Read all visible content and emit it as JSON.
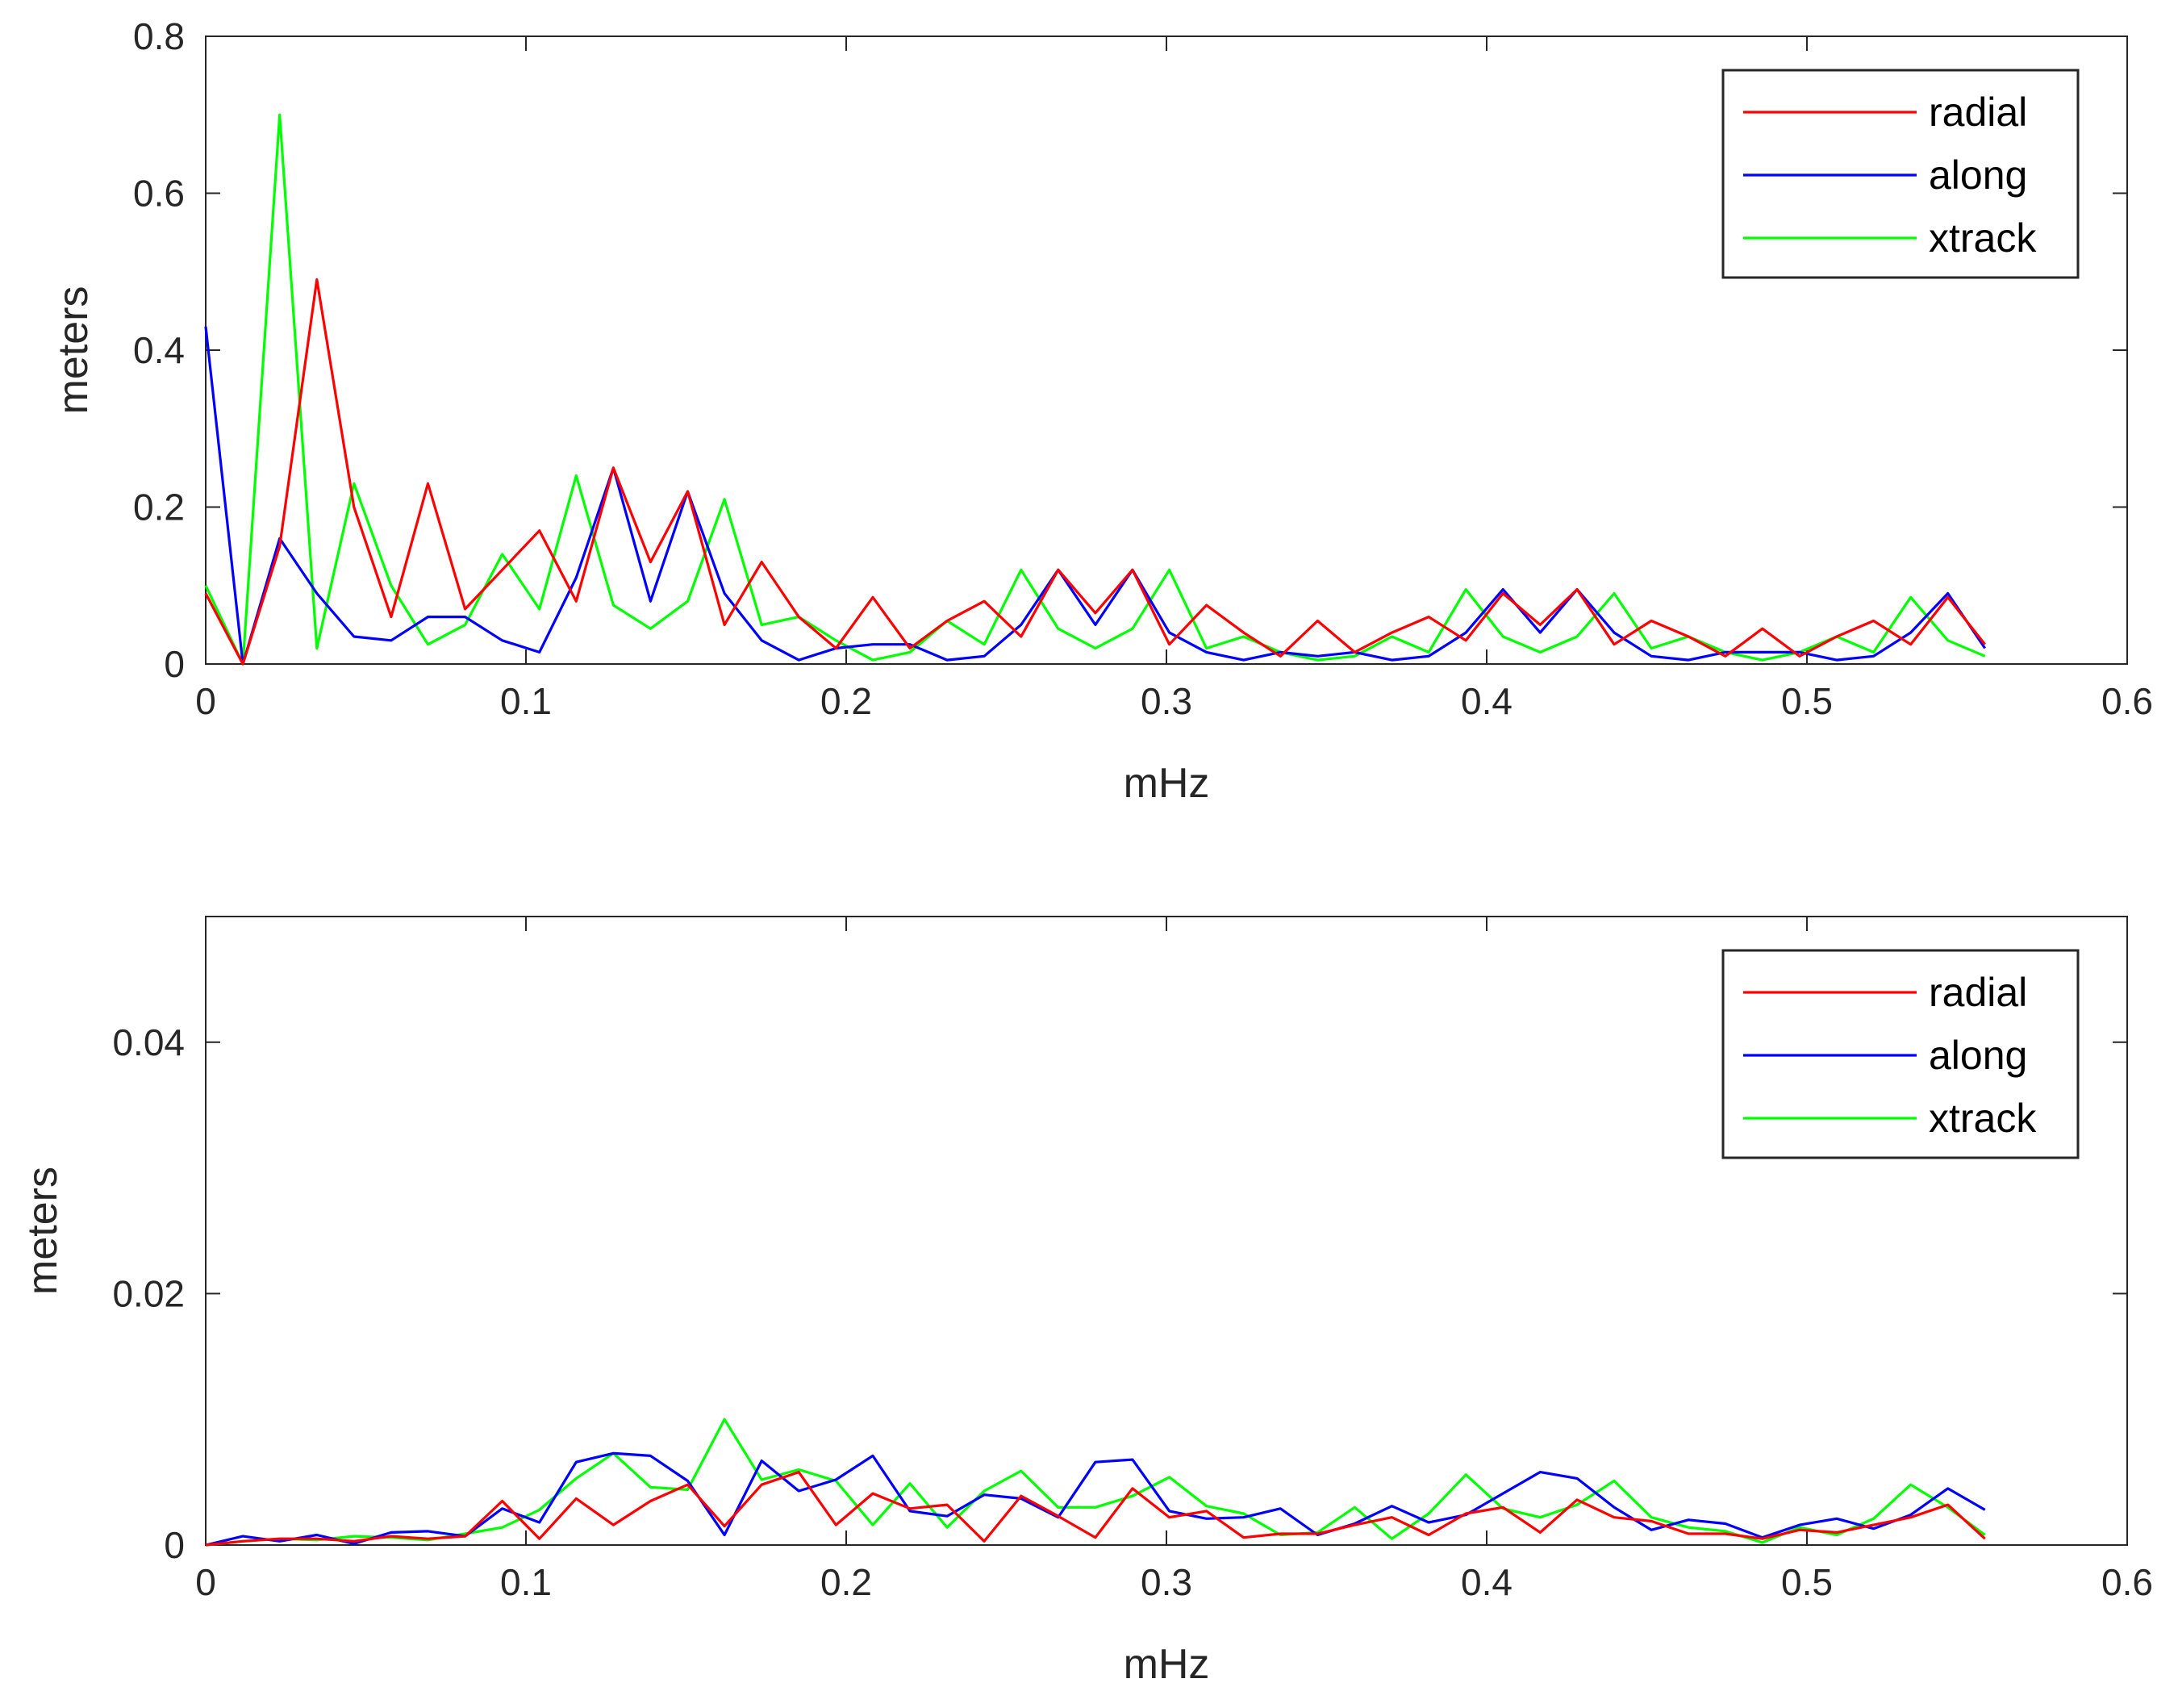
{
  "chart_data": [
    {
      "type": "line",
      "xlabel": "mHz",
      "ylabel": "meters",
      "xlim": [
        0,
        0.6
      ],
      "ylim": [
        0,
        0.8
      ],
      "xticks": [
        0,
        0.1,
        0.2,
        0.3,
        0.4,
        0.5,
        0.6
      ],
      "xtick_labels": [
        "0",
        "0.1",
        "0.2",
        "0.3",
        "0.4",
        "0.5",
        "0.6"
      ],
      "yticks": [
        0,
        0.2,
        0.4,
        0.6,
        0.8
      ],
      "ytick_labels": [
        "0",
        "0.2",
        "0.4",
        "0.6",
        "0.8"
      ],
      "legend_position": "top-right",
      "x": [
        0,
        0.0116,
        0.0231,
        0.0347,
        0.0463,
        0.0579,
        0.0694,
        0.081,
        0.0926,
        0.1042,
        0.1157,
        0.1273,
        0.1389,
        0.1505,
        0.162,
        0.1736,
        0.1852,
        0.1968,
        0.2083,
        0.2199,
        0.2315,
        0.2431,
        0.2546,
        0.2662,
        0.2778,
        0.2894,
        0.3009,
        0.3125,
        0.3241,
        0.3356,
        0.3472,
        0.3588,
        0.3704,
        0.3819,
        0.3935,
        0.4051,
        0.4167,
        0.4282,
        0.4398,
        0.4514,
        0.463,
        0.4745,
        0.4861,
        0.4977,
        0.5093,
        0.5208,
        0.5324,
        0.544,
        0.5556
      ],
      "series": [
        {
          "name": "radial",
          "color": "#ff0000",
          "values": [
            0.09,
            0.0,
            0.15,
            0.49,
            0.2,
            0.06,
            0.23,
            0.07,
            0.12,
            0.17,
            0.08,
            0.25,
            0.13,
            0.22,
            0.05,
            0.13,
            0.06,
            0.02,
            0.085,
            0.02,
            0.055,
            0.08,
            0.035,
            0.12,
            0.065,
            0.12,
            0.025,
            0.075,
            0.04,
            0.01,
            0.055,
            0.015,
            0.04,
            0.06,
            0.03,
            0.09,
            0.05,
            0.095,
            0.025,
            0.055,
            0.035,
            0.01,
            0.045,
            0.01,
            0.035,
            0.055,
            0.025,
            0.085,
            0.025
          ]
        },
        {
          "name": "along",
          "color": "#0000ff",
          "values": [
            0.43,
            0.0,
            0.16,
            0.09,
            0.035,
            0.03,
            0.06,
            0.06,
            0.03,
            0.015,
            0.11,
            0.25,
            0.08,
            0.22,
            0.09,
            0.03,
            0.005,
            0.02,
            0.025,
            0.025,
            0.005,
            0.01,
            0.05,
            0.12,
            0.05,
            0.12,
            0.04,
            0.015,
            0.005,
            0.015,
            0.01,
            0.015,
            0.005,
            0.01,
            0.04,
            0.095,
            0.04,
            0.095,
            0.04,
            0.01,
            0.005,
            0.015,
            0.015,
            0.015,
            0.005,
            0.01,
            0.04,
            0.09,
            0.02
          ]
        },
        {
          "name": "xtrack",
          "color": "#00ff00",
          "values": [
            0.1,
            0.0,
            0.7,
            0.02,
            0.23,
            0.1,
            0.025,
            0.05,
            0.14,
            0.07,
            0.24,
            0.075,
            0.045,
            0.08,
            0.21,
            0.05,
            0.06,
            0.03,
            0.005,
            0.015,
            0.055,
            0.025,
            0.12,
            0.045,
            0.02,
            0.045,
            0.12,
            0.02,
            0.035,
            0.015,
            0.005,
            0.01,
            0.035,
            0.015,
            0.095,
            0.035,
            0.015,
            0.035,
            0.09,
            0.02,
            0.035,
            0.015,
            0.005,
            0.015,
            0.035,
            0.015,
            0.085,
            0.03,
            0.01
          ]
        }
      ]
    },
    {
      "type": "line",
      "xlabel": "mHz",
      "ylabel": "meters",
      "xlim": [
        0,
        0.6
      ],
      "ylim": [
        0,
        0.05
      ],
      "xticks": [
        0,
        0.1,
        0.2,
        0.3,
        0.4,
        0.5,
        0.6
      ],
      "xtick_labels": [
        "0",
        "0.1",
        "0.2",
        "0.3",
        "0.4",
        "0.5",
        "0.6"
      ],
      "yticks": [
        0,
        0.02,
        0.04
      ],
      "ytick_labels": [
        "0",
        "0.02",
        "0.04"
      ],
      "legend_position": "top-right",
      "x": [
        0,
        0.0116,
        0.0231,
        0.0347,
        0.0463,
        0.0579,
        0.0694,
        0.081,
        0.0926,
        0.1042,
        0.1157,
        0.1273,
        0.1389,
        0.1505,
        0.162,
        0.1736,
        0.1852,
        0.1968,
        0.2083,
        0.2199,
        0.2315,
        0.2431,
        0.2546,
        0.2662,
        0.2778,
        0.2894,
        0.3009,
        0.3125,
        0.3241,
        0.3356,
        0.3472,
        0.3588,
        0.3704,
        0.3819,
        0.3935,
        0.4051,
        0.4167,
        0.4282,
        0.4398,
        0.4514,
        0.463,
        0.4745,
        0.4861,
        0.4977,
        0.5093,
        0.5208,
        0.5324,
        0.544,
        0.5556
      ],
      "series": [
        {
          "name": "radial",
          "color": "#ff0000",
          "values": [
            0.0,
            0.0003,
            0.0005,
            0.0005,
            0.0003,
            0.0007,
            0.0005,
            0.0007,
            0.0035,
            0.0005,
            0.0037,
            0.0016,
            0.0035,
            0.0048,
            0.0015,
            0.0048,
            0.0058,
            0.0016,
            0.0041,
            0.0029,
            0.0032,
            0.0003,
            0.0039,
            0.0023,
            0.0006,
            0.0045,
            0.0022,
            0.0027,
            0.0006,
            0.0009,
            0.0009,
            0.0016,
            0.0022,
            0.0008,
            0.0025,
            0.003,
            0.001,
            0.0036,
            0.0022,
            0.0019,
            0.0009,
            0.0009,
            0.0005,
            0.0012,
            0.001,
            0.0016,
            0.0022,
            0.0032,
            0.0005
          ]
        },
        {
          "name": "along",
          "color": "#0000ff",
          "values": [
            0.0,
            0.0007,
            0.0003,
            0.0008,
            0.0001,
            0.001,
            0.0011,
            0.0007,
            0.0029,
            0.0018,
            0.0066,
            0.0073,
            0.0071,
            0.0051,
            0.0008,
            0.0067,
            0.0043,
            0.0052,
            0.0071,
            0.0027,
            0.0023,
            0.004,
            0.0037,
            0.0022,
            0.0066,
            0.0068,
            0.0027,
            0.0021,
            0.0022,
            0.0029,
            0.0008,
            0.0017,
            0.0031,
            0.0018,
            0.0024,
            0.0041,
            0.0058,
            0.0053,
            0.003,
            0.0012,
            0.002,
            0.0017,
            0.0006,
            0.0016,
            0.0021,
            0.0013,
            0.0024,
            0.0045,
            0.0028
          ]
        },
        {
          "name": "xtrack",
          "color": "#00ff00",
          "values": [
            0.0,
            0.0003,
            0.0005,
            0.0004,
            0.0007,
            0.0006,
            0.0004,
            0.0009,
            0.0014,
            0.0028,
            0.0053,
            0.0073,
            0.0046,
            0.0044,
            0.01,
            0.0052,
            0.006,
            0.0051,
            0.0016,
            0.0049,
            0.0014,
            0.0043,
            0.0059,
            0.003,
            0.003,
            0.0039,
            0.0054,
            0.0031,
            0.0025,
            0.0008,
            0.001,
            0.003,
            0.0005,
            0.0025,
            0.0056,
            0.0029,
            0.0022,
            0.0032,
            0.0051,
            0.0022,
            0.0014,
            0.0011,
            0.0002,
            0.0014,
            0.0008,
            0.0021,
            0.0048,
            0.003,
            0.0008
          ]
        }
      ]
    }
  ]
}
